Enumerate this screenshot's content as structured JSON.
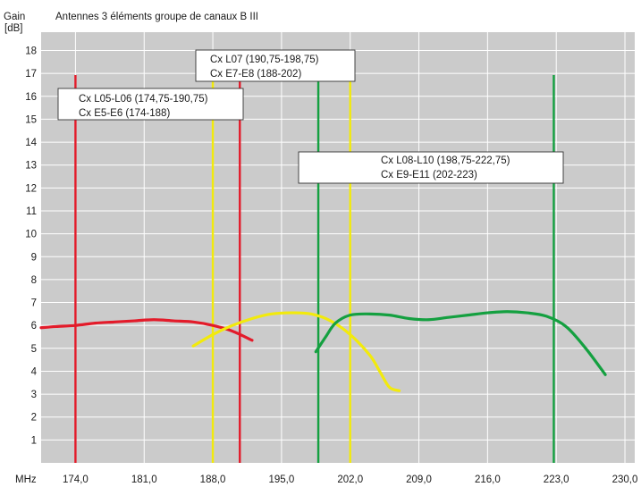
{
  "chart_data": {
    "type": "line",
    "title": "Antennes 3 éléments groupe de canaux B III",
    "ylabel": "Gain",
    "yunit": "[dB]",
    "xlabel": "MHz",
    "xlim": [
      170.5,
      231.0
    ],
    "ylim": [
      0,
      18.8
    ],
    "xticks": [
      "174,0",
      "181,0",
      "188,0",
      "195,0",
      "202,0",
      "209,0",
      "216,0",
      "223,0",
      "230,0"
    ],
    "xtick_values": [
      174,
      181,
      188,
      195,
      202,
      209,
      216,
      223,
      230
    ],
    "yticks": [
      "1",
      "2",
      "3",
      "4",
      "5",
      "6",
      "7",
      "8",
      "9",
      "10",
      "11",
      "12",
      "13",
      "14",
      "15",
      "16",
      "17",
      "18"
    ],
    "ytick_values": [
      1,
      2,
      3,
      4,
      5,
      6,
      7,
      8,
      9,
      10,
      11,
      12,
      13,
      14,
      15,
      16,
      17,
      18
    ],
    "grid": true,
    "plot_background": "#cbcbcb",
    "grid_color": "#ffffff",
    "series": [
      {
        "color": "#e31b2a",
        "x": [
          170.5,
          172,
          174,
          176,
          178,
          180,
          182,
          184,
          186,
          188,
          190,
          192
        ],
        "y": [
          5.9,
          5.95,
          6.0,
          6.1,
          6.15,
          6.2,
          6.25,
          6.2,
          6.15,
          6.0,
          5.75,
          5.35
        ]
      },
      {
        "color": "#f2ea0c",
        "x": [
          186,
          188,
          190,
          192,
          194,
          196,
          198,
          200,
          202,
          204,
          205,
          206,
          207
        ],
        "y": [
          5.1,
          5.6,
          6.0,
          6.3,
          6.5,
          6.55,
          6.5,
          6.2,
          5.6,
          4.7,
          4.0,
          3.3,
          3.15
        ]
      },
      {
        "color": "#14a040",
        "x": [
          198.5,
          199.5,
          200.5,
          202,
          204,
          206,
          208,
          210,
          212,
          214,
          216,
          218,
          220,
          222,
          224,
          226,
          228
        ],
        "y": [
          4.85,
          5.5,
          6.1,
          6.45,
          6.5,
          6.45,
          6.3,
          6.25,
          6.35,
          6.45,
          6.55,
          6.6,
          6.55,
          6.4,
          5.95,
          5.0,
          3.85
        ]
      }
    ],
    "channel_markers": [
      {
        "color": "#e31b2a",
        "x": [
          174.0,
          190.75
        ]
      },
      {
        "color": "#f2ea0c",
        "x": [
          188.0,
          202.0
        ]
      },
      {
        "color": "#14a040",
        "x": [
          198.75,
          222.75
        ]
      }
    ],
    "annotations": [
      {
        "lines": [
          "Cx L05-L06 (174,75-190,75)",
          "Cx E5-E6 (174-188)"
        ]
      },
      {
        "lines": [
          "Cx L07 (190,75-198,75)",
          "Cx E7-E8 (188-202)"
        ]
      },
      {
        "lines": [
          "Cx L08-L10 (198,75-222,75)",
          "Cx E9-E11 (202-223)"
        ]
      }
    ]
  }
}
